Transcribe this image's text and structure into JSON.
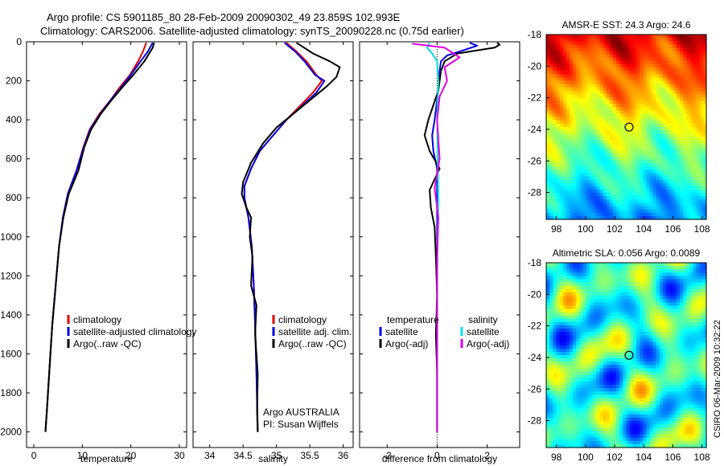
{
  "header": {
    "line1": "Argo profile: CS 5901185_80 28-Feb-2009 20090302_49 23.859S 102.993E",
    "line2": "Climatology: CARS2006. Satellite-adjusted climatology: synTS_20090228.nc (0.75d earlier)"
  },
  "credit": "CSIRO 06-Mar-2009 10:32:22",
  "chart_data": [
    {
      "type": "line",
      "name": "temperature-profile",
      "xlabel": "temperature",
      "ylabel": "",
      "xlim": [
        -1.5,
        31.5
      ],
      "ylim": [
        2080,
        0
      ],
      "yreverse": true,
      "xticks": [
        0,
        10,
        20,
        30
      ],
      "yticks": [
        0,
        200,
        400,
        600,
        800,
        1000,
        1200,
        1400,
        1600,
        1800,
        2000
      ],
      "legend": {
        "placement": "center-right",
        "entries": [
          "climatology",
          "satellite-adjusted climatology",
          "Argo(..raw -QC)"
        ]
      },
      "series": [
        {
          "name": "climatology",
          "color": "#e00000",
          "points": [
            [
              23.2,
              5
            ],
            [
              22.5,
              50
            ],
            [
              21.5,
              100
            ],
            [
              19.8,
              170
            ],
            [
              17.5,
              240
            ],
            [
              15.8,
              300
            ],
            [
              13.5,
              370
            ],
            [
              11.5,
              450
            ],
            [
              10.2,
              540
            ],
            [
              8.8,
              660
            ],
            [
              7.0,
              780
            ],
            [
              6.0,
              900
            ],
            [
              5.2,
              1050
            ],
            [
              4.5,
              1250
            ],
            [
              3.8,
              1450
            ],
            [
              3.3,
              1650
            ],
            [
              2.8,
              1850
            ],
            [
              2.4,
              2000
            ]
          ]
        },
        {
          "name": "satellite-adjusted climatology",
          "color": "#0000e0",
          "points": [
            [
              24.5,
              5
            ],
            [
              23.5,
              50
            ],
            [
              22.0,
              100
            ],
            [
              20.0,
              170
            ],
            [
              17.8,
              240
            ],
            [
              15.8,
              300
            ],
            [
              13.7,
              370
            ],
            [
              11.6,
              450
            ],
            [
              10.3,
              540
            ],
            [
              8.8,
              660
            ],
            [
              7.0,
              780
            ],
            [
              6.0,
              900
            ],
            [
              5.2,
              1050
            ],
            [
              4.5,
              1250
            ],
            [
              3.8,
              1450
            ],
            [
              3.3,
              1650
            ],
            [
              2.8,
              1850
            ],
            [
              2.4,
              2000
            ]
          ]
        },
        {
          "name": "Argo(..raw -QC)",
          "color": "#000000",
          "points": [
            [
              24.8,
              5
            ],
            [
              24.5,
              30
            ],
            [
              22.8,
              100
            ],
            [
              20.5,
              170
            ],
            [
              18.0,
              240
            ],
            [
              16.0,
              300
            ],
            [
              13.8,
              370
            ],
            [
              11.8,
              450
            ],
            [
              10.4,
              540
            ],
            [
              9.2,
              660
            ],
            [
              7.2,
              780
            ],
            [
              6.1,
              900
            ],
            [
              5.2,
              1050
            ],
            [
              4.5,
              1250
            ],
            [
              3.8,
              1450
            ],
            [
              3.3,
              1650
            ],
            [
              2.8,
              1850
            ],
            [
              2.4,
              2000
            ]
          ]
        }
      ]
    },
    {
      "type": "line",
      "name": "salinity-profile",
      "xlabel": "salinity",
      "xlim": [
        33.75,
        36.15
      ],
      "ylim": [
        2080,
        0
      ],
      "yreverse": true,
      "xticks": [
        34,
        34.5,
        35,
        35.5,
        36
      ],
      "legend": {
        "placement": "center-right",
        "entries": [
          "climatology",
          "satellite adj. clim.",
          "Argo(..raw -QC)"
        ]
      },
      "annotation": [
        "Argo AUSTRALIA",
        "PI: Susan Wijffels"
      ],
      "series": [
        {
          "name": "climatology",
          "color": "#e00000",
          "points": [
            [
              35.15,
              5
            ],
            [
              35.3,
              50
            ],
            [
              35.45,
              100
            ],
            [
              35.6,
              170
            ],
            [
              35.68,
              200
            ],
            [
              35.55,
              260
            ],
            [
              35.35,
              330
            ],
            [
              35.15,
              400
            ],
            [
              34.95,
              480
            ],
            [
              34.75,
              560
            ],
            [
              34.62,
              650
            ],
            [
              34.52,
              740
            ],
            [
              34.52,
              800
            ],
            [
              34.58,
              900
            ],
            [
              34.63,
              1050
            ],
            [
              34.66,
              1250
            ],
            [
              34.68,
              1450
            ],
            [
              34.7,
              1700
            ],
            [
              34.72,
              2000
            ]
          ]
        },
        {
          "name": "satellite adj. clim.",
          "color": "#0000e0",
          "points": [
            [
              35.12,
              5
            ],
            [
              35.28,
              50
            ],
            [
              35.42,
              100
            ],
            [
              35.58,
              170
            ],
            [
              35.72,
              200
            ],
            [
              35.6,
              260
            ],
            [
              35.38,
              330
            ],
            [
              35.15,
              400
            ],
            [
              34.95,
              480
            ],
            [
              34.75,
              560
            ],
            [
              34.62,
              650
            ],
            [
              34.52,
              740
            ],
            [
              34.52,
              800
            ],
            [
              34.58,
              900
            ],
            [
              34.63,
              1050
            ],
            [
              34.66,
              1250
            ],
            [
              34.68,
              1450
            ],
            [
              34.7,
              1700
            ],
            [
              34.72,
              2000
            ]
          ]
        },
        {
          "name": "Argo(..raw -QC)",
          "color": "#000000",
          "points": [
            [
              35.3,
              5
            ],
            [
              35.55,
              60
            ],
            [
              35.8,
              100
            ],
            [
              35.95,
              130
            ],
            [
              35.9,
              180
            ],
            [
              35.75,
              230
            ],
            [
              35.5,
              300
            ],
            [
              35.25,
              370
            ],
            [
              35.0,
              440
            ],
            [
              34.8,
              520
            ],
            [
              34.62,
              620
            ],
            [
              34.5,
              720
            ],
            [
              34.48,
              780
            ],
            [
              34.55,
              850
            ],
            [
              34.62,
              900
            ],
            [
              34.6,
              1000
            ],
            [
              34.64,
              1100
            ],
            [
              34.62,
              1250
            ],
            [
              34.7,
              1350
            ],
            [
              34.68,
              1500
            ],
            [
              34.72,
              1700
            ],
            [
              34.71,
              1900
            ],
            [
              34.72,
              2000
            ]
          ]
        }
      ]
    },
    {
      "type": "line",
      "name": "difference-profile",
      "xlabel": "difference from climatology",
      "xlim": [
        -3.1,
        3.3
      ],
      "ylim": [
        2080,
        0
      ],
      "yreverse": true,
      "xticks": [
        -2,
        0,
        2
      ],
      "legend": {
        "placement": "center",
        "entries": [
          "temperature",
          "satellite",
          "Argo(-adj)",
          "salinity",
          "satellite",
          "Argo(-adj)"
        ]
      },
      "series": [
        {
          "name": "temperature satellite",
          "color": "#0000e0",
          "points": [
            [
              1.3,
              5
            ],
            [
              1.6,
              20
            ],
            [
              0.9,
              50
            ],
            [
              0.4,
              70
            ],
            [
              0.15,
              100
            ],
            [
              0.1,
              150
            ],
            [
              0.05,
              250
            ],
            [
              -0.1,
              400
            ],
            [
              -0.2,
              480
            ],
            [
              -0.15,
              560
            ],
            [
              0.0,
              650
            ],
            [
              0.0,
              800
            ],
            [
              0.0,
              1000
            ],
            [
              0.0,
              1500
            ],
            [
              0.0,
              2000
            ]
          ]
        },
        {
          "name": "temperature Argo(-adj)",
          "color": "#000000",
          "points": [
            [
              2.4,
              5
            ],
            [
              2.5,
              15
            ],
            [
              2.3,
              30
            ],
            [
              0.8,
              60
            ],
            [
              0.3,
              100
            ],
            [
              0.15,
              150
            ],
            [
              0.05,
              250
            ],
            [
              -0.35,
              400
            ],
            [
              -0.5,
              480
            ],
            [
              -0.3,
              560
            ],
            [
              0.1,
              650
            ],
            [
              -0.3,
              760
            ],
            [
              -0.25,
              850
            ],
            [
              -0.1,
              950
            ],
            [
              -0.05,
              1100
            ],
            [
              0.0,
              1300
            ],
            [
              -0.05,
              1500
            ],
            [
              0.0,
              1700
            ],
            [
              0.0,
              2000
            ]
          ]
        },
        {
          "name": "salinity satellite",
          "color": "#00e0e0",
          "points": [
            [
              -0.3,
              5
            ],
            [
              -0.4,
              30
            ],
            [
              -0.2,
              60
            ],
            [
              0.0,
              100
            ],
            [
              0.05,
              200
            ],
            [
              0.0,
              400
            ],
            [
              0.05,
              800
            ],
            [
              0.0,
              1200
            ],
            [
              0.0,
              2000
            ]
          ]
        },
        {
          "name": "salinity Argo(-adj)",
          "color": "#e000e0",
          "points": [
            [
              -1.0,
              10
            ],
            [
              0.3,
              30
            ],
            [
              0.9,
              80
            ],
            [
              0.3,
              130
            ],
            [
              0.4,
              200
            ],
            [
              0.1,
              280
            ],
            [
              0.0,
              400
            ],
            [
              0.1,
              600
            ],
            [
              -0.1,
              750
            ],
            [
              0.05,
              900
            ],
            [
              0.0,
              1100
            ],
            [
              0.0,
              1400
            ],
            [
              0.0,
              1700
            ],
            [
              0.0,
              2000
            ]
          ]
        }
      ]
    },
    {
      "type": "heatmap",
      "name": "sst-map",
      "title": "AMSR-E SST: 24.3 Argo: 24.6",
      "xlim": [
        97.3,
        108.3
      ],
      "ylim": [
        -29.7,
        -18
      ],
      "xticks": [
        98,
        100,
        102,
        104,
        106,
        108
      ],
      "yticks": [
        -18,
        -20,
        -22,
        -24,
        -26,
        -28
      ],
      "marker": {
        "lon": 102.993,
        "lat": -23.859
      },
      "grid": false
    },
    {
      "type": "heatmap",
      "name": "sla-map",
      "title": "Altimetric SLA: 0.056 Argo: 0.0089",
      "xlim": [
        97.3,
        108.3
      ],
      "ylim": [
        -29.7,
        -18
      ],
      "xticks": [
        98,
        100,
        102,
        104,
        106,
        108
      ],
      "yticks": [
        -18,
        -20,
        -22,
        -24,
        -26,
        -28
      ],
      "marker": {
        "lon": 102.993,
        "lat": -23.859
      },
      "grid": false
    }
  ]
}
